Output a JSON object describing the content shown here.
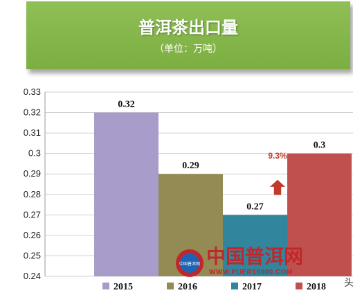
{
  "banner": {
    "title": "普洱茶出口量",
    "subtitle": "（单位：万吨）"
  },
  "chart_data": {
    "type": "bar",
    "title": "普洱茶出口量",
    "subtitle": "（单位：万吨）",
    "categories": [
      "2015",
      "2016",
      "2017",
      "2018"
    ],
    "values": [
      0.32,
      0.29,
      0.27,
      0.3
    ],
    "data_labels": [
      "0.32",
      "0.29",
      "0.27",
      "0.3"
    ],
    "colors": [
      "#a89ccb",
      "#948b54",
      "#31859c",
      "#c0504d"
    ],
    "ylim": [
      0.24,
      0.33
    ],
    "yticks": [
      "0.33",
      "0.32",
      "0.31",
      "0.3",
      "0.29",
      "0.28",
      "0.27",
      "0.26",
      "0.25",
      "0.24"
    ],
    "ytick_values": [
      0.33,
      0.32,
      0.31,
      0.3,
      0.29,
      0.28,
      0.27,
      0.26,
      0.25,
      0.24
    ],
    "grid": true,
    "legend_position": "bottom",
    "annotation": {
      "text": "9.3%",
      "icon": "up-arrow-icon",
      "color": "#c0392b"
    }
  },
  "watermark": {
    "text": "中国普洱网",
    "url": "WWW.PUER10000.COM",
    "logo_text": "中国普洱网",
    "color": "#c0272d"
  },
  "edge_glyph": "头"
}
